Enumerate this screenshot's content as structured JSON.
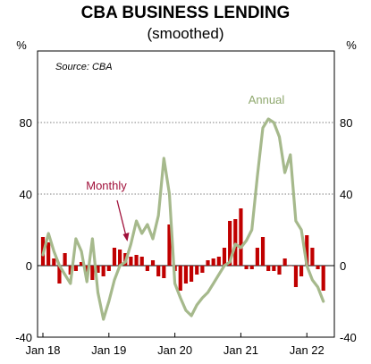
{
  "chart_data": {
    "type": "bar+line",
    "title": "CBA BUSINESS LENDING",
    "subtitle": "(smoothed)",
    "unit_label_left": "%",
    "unit_label_right": "%",
    "source": "Source: CBA",
    "ylim": [
      -40,
      120
    ],
    "yticks": [
      -40,
      0,
      40,
      80
    ],
    "gridlines_dotted": [
      40,
      80
    ],
    "xlim": [
      0,
      53
    ],
    "xticks": [
      {
        "label": "Jan 18",
        "x": 0
      },
      {
        "label": "Jan 19",
        "x": 12
      },
      {
        "label": "Jan 20",
        "x": 24
      },
      {
        "label": "Jan 21",
        "x": 36
      },
      {
        "label": "Jan 22",
        "x": 48
      }
    ],
    "series": [
      {
        "name": "Monthly",
        "kind": "bar",
        "color": "#c00000",
        "x": [
          0,
          1,
          2,
          3,
          4,
          5,
          6,
          7,
          8,
          9,
          10,
          11,
          12,
          13,
          14,
          15,
          16,
          17,
          18,
          19,
          20,
          21,
          22,
          23,
          24,
          25,
          26,
          27,
          28,
          29,
          30,
          31,
          32,
          33,
          34,
          35,
          36,
          37,
          38,
          39,
          40,
          41,
          42,
          43,
          44,
          45,
          46,
          47,
          48,
          49,
          50,
          51
        ],
        "values": [
          16,
          13,
          4,
          -10,
          7,
          -5,
          -3,
          2,
          -5,
          -8,
          -4,
          -6,
          -3,
          10,
          9,
          7,
          5,
          6,
          5,
          -3,
          3,
          -6,
          -7,
          23,
          -3,
          -14,
          -10,
          -9,
          -5,
          -4,
          3,
          4,
          5,
          10,
          25,
          26,
          32,
          -2,
          -2,
          10,
          16,
          -3,
          -3,
          -5,
          4,
          0,
          -12,
          -6,
          17,
          10,
          -2,
          -14
        ]
      },
      {
        "name": "Annual",
        "kind": "line",
        "color": "#a6b98c",
        "x": [
          0,
          1,
          2,
          3,
          4,
          5,
          6,
          7,
          8,
          9,
          10,
          11,
          12,
          13,
          14,
          15,
          16,
          17,
          18,
          19,
          20,
          21,
          22,
          23,
          24,
          25,
          26,
          27,
          28,
          29,
          30,
          31,
          32,
          33,
          34,
          35,
          36,
          37,
          38,
          39,
          40,
          41,
          42,
          43,
          44,
          45,
          46,
          47,
          48,
          49,
          50,
          51
        ],
        "values": [
          6,
          18,
          8,
          0,
          -5,
          -10,
          15,
          8,
          -9,
          15,
          -15,
          -30,
          -20,
          -8,
          0,
          2,
          12,
          25,
          18,
          23,
          15,
          28,
          60,
          40,
          -10,
          -18,
          -25,
          -28,
          -22,
          -18,
          -15,
          -10,
          -5,
          0,
          2,
          12,
          10,
          14,
          20,
          50,
          77,
          82,
          80,
          72,
          52,
          62,
          25,
          20,
          0,
          -8,
          -12,
          -20
        ]
      }
    ],
    "annotations": [
      {
        "text": "Monthly",
        "color": "#a0103a"
      },
      {
        "text": "Annual",
        "color": "#8fa86e"
      }
    ]
  }
}
